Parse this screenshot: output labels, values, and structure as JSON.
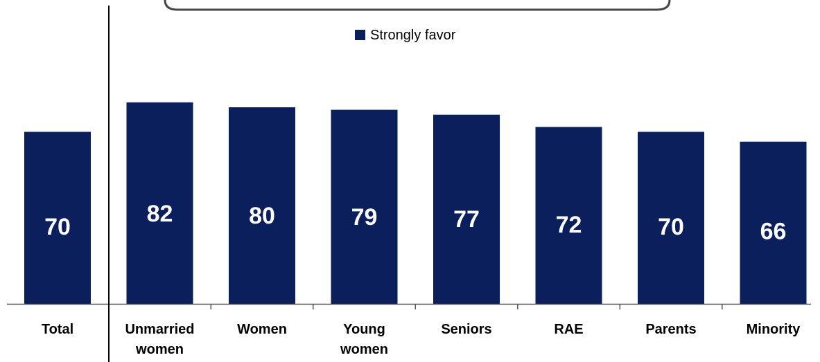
{
  "chart_data": {
    "type": "bar",
    "categories": [
      [
        "Total"
      ],
      [
        "Unmarried",
        "women"
      ],
      [
        "Women"
      ],
      [
        "Young",
        "women"
      ],
      [
        "Seniors"
      ],
      [
        "RAE"
      ],
      [
        "Parents"
      ],
      [
        "Minority"
      ]
    ],
    "series": [
      {
        "name": "Strongly favor",
        "values": [
          70,
          82,
          80,
          79,
          77,
          72,
          70,
          66
        ],
        "color": "#0a1f5c"
      }
    ],
    "title": "",
    "xlabel": "",
    "ylabel": "",
    "ylim": [
      0,
      100
    ],
    "grid": false,
    "legend": "top-center",
    "data_labels": [
      "70",
      "82",
      "80",
      "79",
      "77",
      "72",
      "70",
      "66"
    ]
  }
}
